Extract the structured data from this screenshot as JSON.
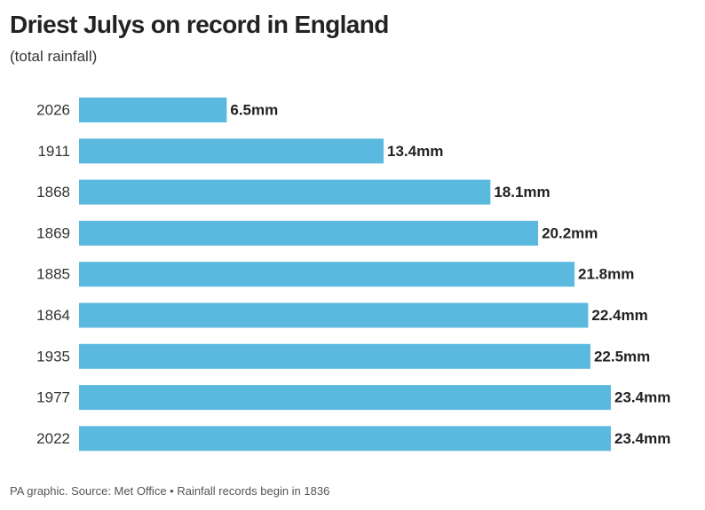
{
  "chart_data": {
    "type": "bar",
    "orientation": "horizontal",
    "title": "Driest Julys on record in England",
    "subtitle": "(total rainfall)",
    "categories": [
      "2026",
      "1911",
      "1868",
      "1869",
      "1885",
      "1864",
      "1935",
      "1977",
      "2022"
    ],
    "values": [
      6.5,
      13.4,
      18.1,
      20.2,
      21.8,
      22.4,
      22.5,
      23.4,
      23.4
    ],
    "data_labels": [
      "6.5mm",
      "13.4mm",
      "18.1mm",
      "20.2mm",
      "21.8mm",
      "22.4mm",
      "22.5mm",
      "23.4mm",
      "23.4mm"
    ],
    "unit": "mm",
    "bar_color": "#5bb8de",
    "grid": false,
    "legend": "none",
    "xlim": [
      0,
      23.4
    ],
    "xlabel": "",
    "ylabel": ""
  },
  "footer": {
    "source": "PA graphic. Source: Met Office • Rainfall records begin in 1836"
  }
}
